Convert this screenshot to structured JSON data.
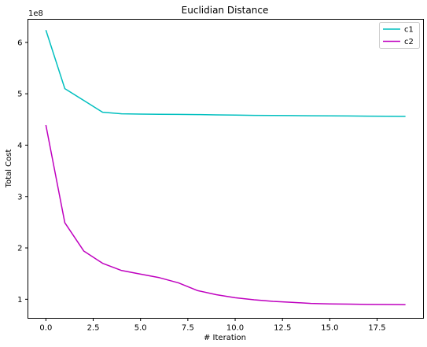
{
  "chart_data": {
    "type": "line",
    "title": "Euclidian Distance",
    "xlabel": "# Iteration",
    "ylabel": "Total Cost",
    "y_scale_label": "1e8",
    "xlim": [
      -0.95,
      19.95
    ],
    "ylim": [
      0.63,
      6.45
    ],
    "x_ticks": [
      0,
      2.5,
      5,
      7.5,
      10,
      12.5,
      15,
      17.5
    ],
    "x_tick_labels": [
      "0.0",
      "2.5",
      "5.0",
      "7.5",
      "10.0",
      "12.5",
      "15.0",
      "17.5"
    ],
    "y_ticks": [
      1,
      2,
      3,
      4,
      5,
      6
    ],
    "y_tick_labels": [
      "1",
      "2",
      "3",
      "4",
      "5",
      "6"
    ],
    "legend_position": "top-right",
    "grid": false,
    "x": [
      0,
      1,
      2,
      3,
      4,
      5,
      6,
      7,
      8,
      9,
      10,
      11,
      12,
      13,
      14,
      15,
      16,
      17,
      18,
      19
    ],
    "series": [
      {
        "name": "c1",
        "color": "#00bfbf",
        "values": [
          6.24,
          5.1,
          4.87,
          4.64,
          4.61,
          4.605,
          4.6,
          4.598,
          4.595,
          4.59,
          4.585,
          4.58,
          4.578,
          4.575,
          4.572,
          4.57,
          4.568,
          4.565,
          4.562,
          4.56
        ]
      },
      {
        "name": "c2",
        "color": "#bf00bf",
        "values": [
          4.39,
          2.49,
          1.94,
          1.7,
          1.56,
          1.49,
          1.42,
          1.32,
          1.17,
          1.09,
          1.03,
          0.99,
          0.96,
          0.94,
          0.92,
          0.91,
          0.905,
          0.9,
          0.898,
          0.895
        ]
      }
    ]
  }
}
